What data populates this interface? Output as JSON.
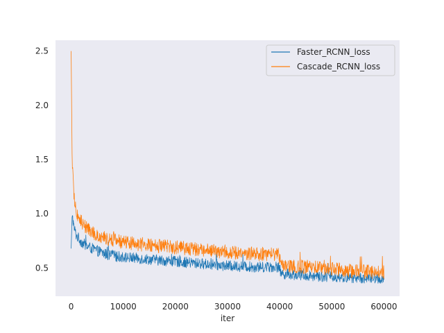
{
  "chart_data": {
    "type": "line",
    "title": "",
    "xlabel": "iter",
    "ylabel": "",
    "xlim": [
      -3000,
      63000
    ],
    "ylim": [
      0.24,
      2.6
    ],
    "grid": false,
    "legend_position": "top-right",
    "x_ticks": [
      0,
      10000,
      20000,
      30000,
      40000,
      50000,
      60000
    ],
    "x_tick_labels": [
      "0",
      "10000",
      "20000",
      "30000",
      "40000",
      "50000",
      "60000"
    ],
    "y_ticks": [
      0.5,
      1.0,
      1.5,
      2.0,
      2.5
    ],
    "y_tick_labels": [
      "0.5",
      "1.0",
      "1.5",
      "2.0",
      "2.5"
    ],
    "series": [
      {
        "name": "Faster_RCNN_loss",
        "color": "#1f77b4",
        "x": [
          0,
          200,
          500,
          1000,
          2000,
          3000,
          4000,
          5000,
          7000,
          10000,
          15000,
          20000,
          25000,
          30000,
          35000,
          39800,
          40300,
          45000,
          50000,
          55000,
          60000
        ],
        "y": [
          0.68,
          1.0,
          0.88,
          0.8,
          0.74,
          0.7,
          0.68,
          0.66,
          0.62,
          0.6,
          0.58,
          0.56,
          0.54,
          0.52,
          0.51,
          0.51,
          0.45,
          0.43,
          0.42,
          0.41,
          0.4
        ],
        "noise": 0.05
      },
      {
        "name": "Cascade_RCNN_loss",
        "color": "#ff7f0e",
        "x": [
          0,
          200,
          500,
          1000,
          2000,
          3000,
          4000,
          5000,
          7000,
          10000,
          15000,
          20000,
          25000,
          30000,
          35000,
          39800,
          40300,
          45000,
          50000,
          55000,
          60000
        ],
        "y": [
          2.5,
          1.45,
          1.2,
          1.0,
          0.92,
          0.87,
          0.83,
          0.8,
          0.77,
          0.74,
          0.71,
          0.69,
          0.67,
          0.65,
          0.63,
          0.63,
          0.53,
          0.51,
          0.49,
          0.47,
          0.46
        ],
        "noise": 0.065
      }
    ]
  }
}
